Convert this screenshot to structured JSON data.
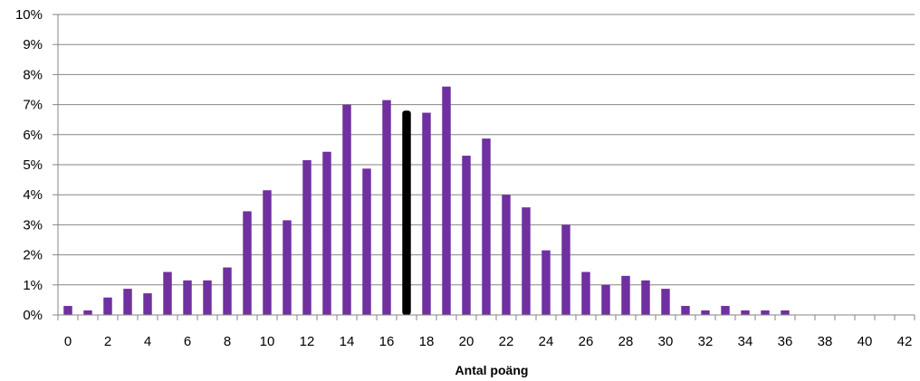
{
  "chart_data": {
    "type": "bar",
    "title": "",
    "xlabel": "Antal poäng",
    "ylabel": "",
    "x": [
      0,
      1,
      2,
      3,
      4,
      5,
      6,
      7,
      8,
      9,
      10,
      11,
      12,
      13,
      14,
      15,
      16,
      17,
      18,
      19,
      20,
      21,
      22,
      23,
      24,
      25,
      26,
      27,
      28,
      29,
      30,
      31,
      32,
      33,
      34,
      35,
      36,
      37,
      38,
      39,
      40,
      41,
      42
    ],
    "x_tick_labels": [
      "0",
      "2",
      "4",
      "6",
      "8",
      "10",
      "12",
      "14",
      "16",
      "18",
      "20",
      "22",
      "24",
      "26",
      "28",
      "30",
      "32",
      "34",
      "36",
      "38",
      "40",
      "42"
    ],
    "y_tick_labels": [
      "0%",
      "1%",
      "2%",
      "3%",
      "4%",
      "5%",
      "6%",
      "7%",
      "8%",
      "9%",
      "10%"
    ],
    "values": [
      0.3,
      0.15,
      0.58,
      0.87,
      0.72,
      1.43,
      1.15,
      1.15,
      1.58,
      3.45,
      4.15,
      3.15,
      5.15,
      5.43,
      7.0,
      4.87,
      7.15,
      6.8,
      6.73,
      7.6,
      5.3,
      5.87,
      4.0,
      3.58,
      2.15,
      3.0,
      1.43,
      1.0,
      1.3,
      1.15,
      0.87,
      0.3,
      0.15,
      0.3,
      0.15,
      0.15,
      0.15,
      0,
      0,
      0,
      0,
      0,
      0
    ],
    "ylim": [
      0,
      10
    ],
    "grid": true,
    "legend": "none",
    "highlight_x": 17,
    "colors": {
      "bar": "#7030a0",
      "highlight": "#000000",
      "grid": "#868686",
      "axis": "#868686"
    }
  }
}
